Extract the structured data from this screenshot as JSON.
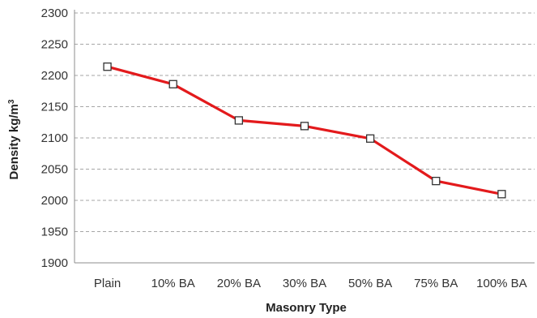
{
  "chart_data": {
    "type": "line",
    "title": "",
    "xlabel": "Masonry Type",
    "ylabel": "Density kg/m",
    "ylabel_superscript": "3",
    "categories": [
      "Plain",
      "10% BA",
      "20% BA",
      "30% BA",
      "50% BA",
      "75% BA",
      "100% BA"
    ],
    "series": [
      {
        "values": [
          2214,
          2186,
          2128,
          2119,
          2099,
          2031,
          2010
        ],
        "color": "#e31a1c",
        "marker": "square"
      }
    ],
    "yticks": [
      1900,
      1950,
      2000,
      2050,
      2100,
      2150,
      2200,
      2250,
      2300
    ],
    "ylim": [
      1900,
      2300
    ],
    "grid": "horizontal-dashed",
    "legend": "none"
  }
}
